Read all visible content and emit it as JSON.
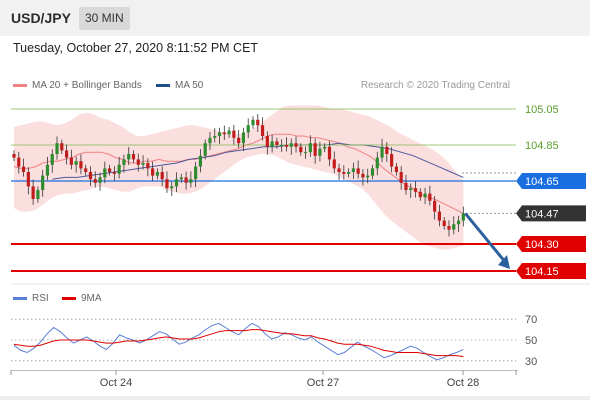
{
  "header": {
    "pair": "USD/JPY",
    "timeframe": "30 MIN"
  },
  "date_line": "Tuesday, October 27, 2020 8:11:52 PM CET",
  "legend_main": [
    {
      "label": "MA 20 + Bollinger Bands",
      "color": "#f08080"
    },
    {
      "label": "MA 50",
      "color": "#1f4e8c"
    }
  ],
  "credit": "Research © 2020 Trading Central",
  "legend_rsi": [
    {
      "label": "RSI",
      "color": "#5a7fd6"
    },
    {
      "label": "9MA",
      "color": "#e00000"
    }
  ],
  "chart_data": [
    {
      "type": "candlestick",
      "title": "",
      "ylim": [
        104.1,
        105.1
      ],
      "levels": [
        {
          "value": 105.05,
          "label": "105.05",
          "kind": "resistance",
          "color": "#7db94a"
        },
        {
          "value": 104.85,
          "label": "104.85",
          "kind": "resistance",
          "color": "#7db94a"
        },
        {
          "value": 104.65,
          "label": "104.65",
          "kind": "pivot",
          "color": "#1a6fe0"
        },
        {
          "value": 104.47,
          "label": "104.47",
          "kind": "last_price",
          "color": "#333333"
        },
        {
          "value": 104.3,
          "label": "104.30",
          "kind": "support",
          "color": "#e00000"
        },
        {
          "value": 104.15,
          "label": "104.15",
          "kind": "support",
          "color": "#e00000"
        }
      ],
      "x_ticks": [
        "Oct 24",
        "Oct 27",
        "Oct 28"
      ],
      "close": [
        104.78,
        104.73,
        104.7,
        104.62,
        104.55,
        104.6,
        104.68,
        104.74,
        104.8,
        104.86,
        104.82,
        104.78,
        104.74,
        104.76,
        104.72,
        104.7,
        104.66,
        104.64,
        104.67,
        104.72,
        104.7,
        104.69,
        104.74,
        104.77,
        104.8,
        104.77,
        104.74,
        104.75,
        104.72,
        104.68,
        104.7,
        104.66,
        104.61,
        104.62,
        104.66,
        104.67,
        104.64,
        104.66,
        104.73,
        104.79,
        104.86,
        104.89,
        104.9,
        104.92,
        104.91,
        104.93,
        104.89,
        104.86,
        104.92,
        104.96,
        104.99,
        104.96,
        104.9,
        104.84,
        104.87,
        104.85,
        104.85,
        104.84,
        104.86,
        104.84,
        104.81,
        104.81,
        104.86,
        104.79,
        104.83,
        104.84,
        104.77,
        104.72,
        104.7,
        104.69,
        104.7,
        104.72,
        104.69,
        104.67,
        104.68,
        104.72,
        104.78,
        104.84,
        104.8,
        104.73,
        104.7,
        104.64,
        104.6,
        104.61,
        104.59,
        104.56,
        104.58,
        104.54,
        104.48,
        104.43,
        104.4,
        104.38,
        104.41,
        104.43,
        104.47
      ],
      "bollinger": {
        "upper": [
          104.95,
          104.96,
          104.97,
          104.98,
          104.98,
          104.97,
          104.96,
          104.97,
          104.99,
          105.02,
          105.03,
          105.02,
          105.0,
          104.99,
          104.97,
          104.95,
          104.92,
          104.9,
          104.9,
          104.91,
          104.92,
          104.93,
          104.94,
          104.95,
          104.96,
          104.96,
          104.95,
          104.94,
          104.93,
          104.92,
          104.91,
          104.91,
          104.92,
          104.94,
          104.97,
          105.0,
          105.03,
          105.06,
          105.07,
          105.07,
          105.07,
          105.07,
          105.07,
          105.06,
          105.05,
          105.05,
          105.04,
          105.03,
          105.02,
          105.01,
          104.99,
          104.97,
          104.95,
          104.92,
          104.9,
          104.88,
          104.86,
          104.84,
          104.82,
          104.79,
          104.75,
          104.7,
          104.65
        ],
        "lower": [
          104.5,
          104.48,
          104.48,
          104.49,
          104.52,
          104.55,
          104.57,
          104.58,
          104.58,
          104.59,
          104.6,
          104.61,
          104.62,
          104.61,
          104.6,
          104.59,
          104.59,
          104.61,
          104.62,
          104.62,
          104.62,
          104.6,
          104.59,
          104.58,
          104.58,
          104.59,
          104.61,
          104.64,
          104.67,
          104.7,
          104.73,
          104.76,
          104.78,
          104.79,
          104.8,
          104.8,
          104.79,
          104.77,
          104.75,
          104.74,
          104.73,
          104.72,
          104.71,
          104.7,
          104.69,
          104.67,
          104.65,
          104.63,
          104.61,
          104.57,
          104.52,
          104.47,
          104.43,
          104.4,
          104.37,
          104.34,
          104.31,
          104.29,
          104.28,
          104.27,
          104.27,
          104.28,
          104.29
        ],
        "ma20": [
          104.73,
          104.72,
          104.72,
          104.73,
          104.75,
          104.76,
          104.76,
          104.77,
          104.78,
          104.8,
          104.81,
          104.81,
          104.81,
          104.8,
          104.78,
          104.77,
          104.75,
          104.75,
          104.76,
          104.76,
          104.77,
          104.76,
          104.76,
          104.76,
          104.77,
          104.77,
          104.78,
          104.79,
          104.8,
          104.81,
          104.82,
          104.83,
          104.85,
          104.86,
          104.88,
          104.9,
          104.91,
          104.91,
          104.91,
          104.9,
          104.9,
          104.89,
          104.89,
          104.88,
          104.87,
          104.86,
          104.84,
          104.83,
          104.81,
          104.79,
          104.76,
          104.72,
          104.69,
          104.66,
          104.63,
          104.61,
          104.58,
          104.56,
          104.55,
          104.53,
          104.51,
          104.49,
          104.47
        ]
      },
      "ma50": [
        104.66,
        104.67,
        104.67,
        104.68,
        104.69,
        104.7,
        104.71,
        104.72,
        104.73,
        104.74,
        104.75,
        104.77,
        104.78,
        104.79,
        104.81,
        104.82,
        104.83,
        104.84,
        104.84,
        104.85,
        104.85,
        104.85,
        104.85,
        104.86,
        104.85,
        104.85,
        104.84,
        104.83,
        104.81,
        104.79,
        104.76,
        104.73,
        104.7,
        104.67
      ]
    },
    {
      "type": "line",
      "title": "",
      "ylim": [
        25,
        75
      ],
      "y_ticks": [
        30,
        50,
        70
      ],
      "series": [
        {
          "name": "RSI",
          "values": [
            45,
            40,
            38,
            42,
            48,
            56,
            62,
            58,
            52,
            47,
            50,
            53,
            49,
            44,
            41,
            47,
            55,
            52,
            50,
            47,
            50,
            54,
            58,
            56,
            51,
            46,
            48,
            52,
            55,
            60,
            64,
            66,
            62,
            58,
            55,
            61,
            66,
            63,
            56,
            51,
            53,
            57,
            55,
            52,
            50,
            53,
            48,
            44,
            40,
            36,
            38,
            43,
            48,
            44,
            41,
            37,
            33,
            35,
            38,
            41,
            44,
            42,
            38,
            34,
            31,
            33,
            36,
            38,
            41
          ]
        },
        {
          "name": "9MA",
          "values": [
            46,
            45,
            44,
            44,
            45,
            47,
            49,
            50,
            50,
            50,
            50,
            50,
            49,
            48,
            47,
            47,
            48,
            49,
            49,
            49,
            50,
            51,
            52,
            53,
            52,
            51,
            51,
            51,
            52,
            54,
            56,
            58,
            59,
            59,
            59,
            59,
            60,
            60,
            59,
            58,
            57,
            56,
            56,
            55,
            54,
            54,
            52,
            51,
            49,
            47,
            46,
            46,
            46,
            45,
            44,
            42,
            40,
            39,
            38,
            38,
            38,
            38,
            37,
            36,
            35,
            35,
            35,
            35,
            34
          ]
        }
      ]
    }
  ]
}
